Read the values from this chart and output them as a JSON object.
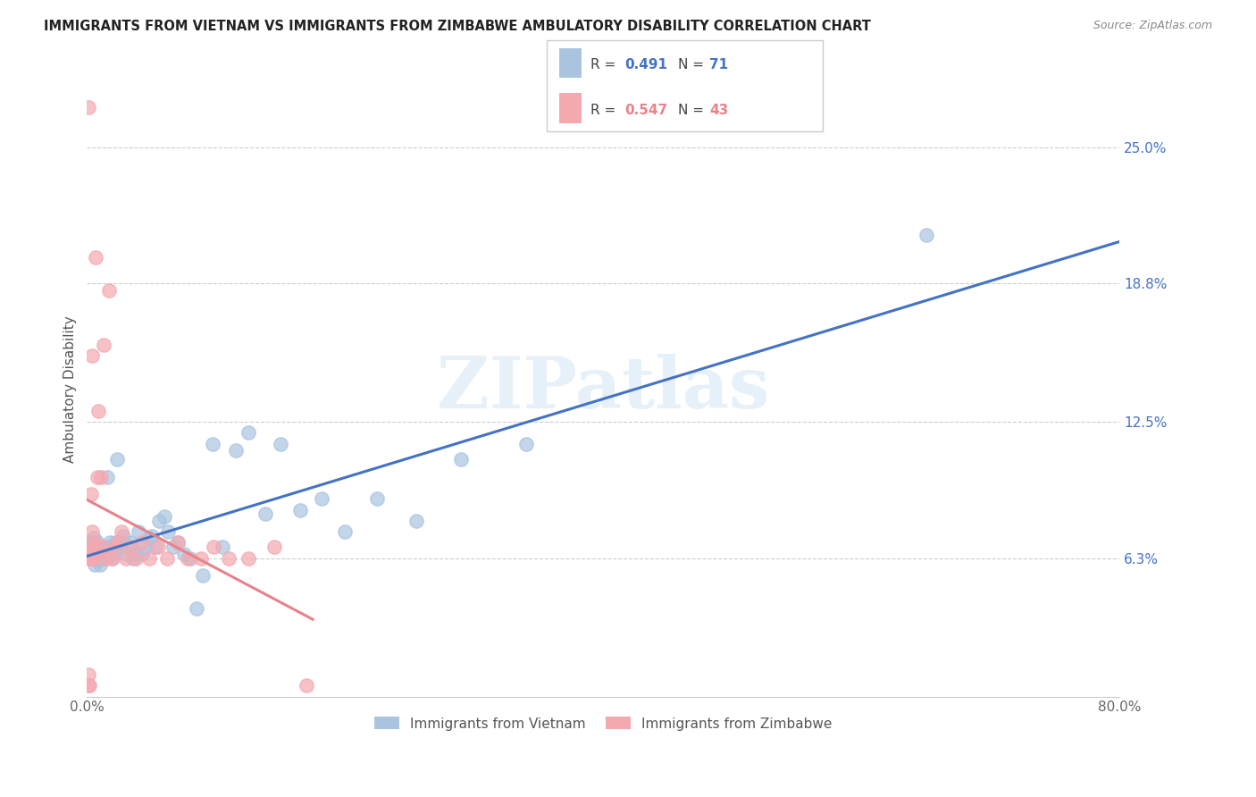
{
  "title": "IMMIGRANTS FROM VIETNAM VS IMMIGRANTS FROM ZIMBABWE AMBULATORY DISABILITY CORRELATION CHART",
  "source": "Source: ZipAtlas.com",
  "ylabel": "Ambulatory Disability",
  "x_min": 0.0,
  "x_max": 0.8,
  "y_min": 0.0,
  "y_max": 0.28,
  "y_ticks_right": [
    0.063,
    0.125,
    0.188,
    0.25
  ],
  "y_tick_labels_right": [
    "6.3%",
    "12.5%",
    "18.8%",
    "25.0%"
  ],
  "legend_r1": "0.491",
  "legend_n1": "71",
  "legend_r2": "0.547",
  "legend_n2": "43",
  "color_vietnam": "#aac4e0",
  "color_zimbabwe": "#f4a8b0",
  "color_line_vietnam": "#4472c4",
  "color_line_zimbabwe": "#e8828a",
  "watermark": "ZIPatlas",
  "vietnam_x": [
    0.001,
    0.002,
    0.002,
    0.003,
    0.003,
    0.004,
    0.004,
    0.005,
    0.005,
    0.005,
    0.006,
    0.006,
    0.007,
    0.007,
    0.007,
    0.008,
    0.008,
    0.009,
    0.009,
    0.01,
    0.01,
    0.011,
    0.011,
    0.012,
    0.013,
    0.014,
    0.015,
    0.016,
    0.017,
    0.018,
    0.019,
    0.02,
    0.022,
    0.023,
    0.025,
    0.027,
    0.028,
    0.03,
    0.032,
    0.034,
    0.036,
    0.038,
    0.04,
    0.043,
    0.045,
    0.048,
    0.05,
    0.053,
    0.056,
    0.06,
    0.063,
    0.067,
    0.07,
    0.075,
    0.08,
    0.085,
    0.09,
    0.097,
    0.105,
    0.115,
    0.125,
    0.138,
    0.15,
    0.165,
    0.182,
    0.2,
    0.225,
    0.255,
    0.29,
    0.34,
    0.65
  ],
  "vietnam_y": [
    0.068,
    0.065,
    0.07,
    0.063,
    0.068,
    0.065,
    0.07,
    0.063,
    0.068,
    0.072,
    0.06,
    0.068,
    0.065,
    0.063,
    0.068,
    0.065,
    0.07,
    0.062,
    0.068,
    0.065,
    0.06,
    0.068,
    0.063,
    0.068,
    0.063,
    0.065,
    0.065,
    0.1,
    0.068,
    0.07,
    0.065,
    0.063,
    0.07,
    0.108,
    0.068,
    0.07,
    0.073,
    0.065,
    0.068,
    0.07,
    0.063,
    0.065,
    0.075,
    0.065,
    0.068,
    0.072,
    0.073,
    0.068,
    0.08,
    0.082,
    0.075,
    0.068,
    0.07,
    0.065,
    0.063,
    0.04,
    0.055,
    0.115,
    0.068,
    0.112,
    0.12,
    0.083,
    0.115,
    0.085,
    0.09,
    0.075,
    0.09,
    0.08,
    0.108,
    0.115,
    0.21
  ],
  "zimbabwe_x": [
    0.001,
    0.001,
    0.001,
    0.002,
    0.002,
    0.002,
    0.003,
    0.003,
    0.003,
    0.004,
    0.004,
    0.004,
    0.005,
    0.005,
    0.006,
    0.007,
    0.008,
    0.009,
    0.01,
    0.011,
    0.012,
    0.013,
    0.015,
    0.017,
    0.019,
    0.021,
    0.024,
    0.027,
    0.03,
    0.034,
    0.038,
    0.043,
    0.048,
    0.055,
    0.062,
    0.07,
    0.078,
    0.088,
    0.098,
    0.11,
    0.125,
    0.145,
    0.17
  ],
  "zimbabwe_y": [
    0.005,
    0.01,
    0.268,
    0.005,
    0.063,
    0.068,
    0.063,
    0.068,
    0.092,
    0.063,
    0.075,
    0.155,
    0.063,
    0.068,
    0.07,
    0.2,
    0.1,
    0.13,
    0.065,
    0.1,
    0.068,
    0.16,
    0.063,
    0.185,
    0.063,
    0.068,
    0.07,
    0.075,
    0.063,
    0.068,
    0.063,
    0.07,
    0.063,
    0.068,
    0.063,
    0.07,
    0.063,
    0.063,
    0.068,
    0.063,
    0.063,
    0.068,
    0.005
  ]
}
